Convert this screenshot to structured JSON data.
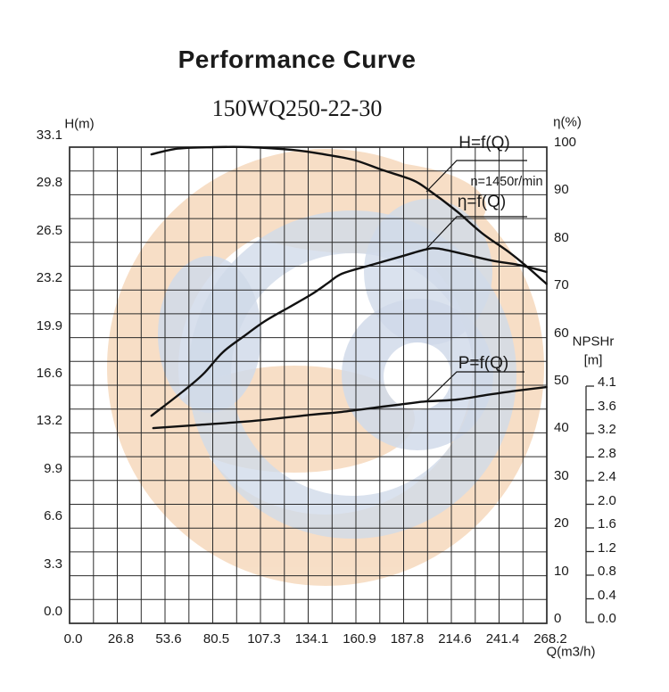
{
  "title": "Performance Curve",
  "subtitle": "150WQ250-22-30",
  "annotations": {
    "h_curve": "H=f(Q)",
    "eta_curve": "η=f(Q)",
    "p_curve": "P=f(Q)",
    "speed": "n=1450r/min"
  },
  "axes": {
    "left": {
      "label": "H(m)",
      "ticks": [
        "33.1",
        "29.8",
        "26.5",
        "23.2",
        "19.9",
        "16.6",
        "13.2",
        "9.9",
        "6.6",
        "3.3",
        "0.0"
      ]
    },
    "right": {
      "label": "η(%)",
      "ticks": [
        "100",
        "90",
        "80",
        "70",
        "60",
        "50",
        "40",
        "30",
        "20",
        "10",
        "0"
      ]
    },
    "bottom": {
      "label": "Q(m3/h)",
      "ticks": [
        "0.0",
        "26.8",
        "53.6",
        "80.5",
        "107.3",
        "134.1",
        "160.9",
        "187.8",
        "214.6",
        "241.4",
        "268.2"
      ]
    },
    "npshr": {
      "label_line1": "NPSHr",
      "label_line2": "[m]",
      "ticks": [
        "4.1",
        "3.6",
        "3.2",
        "2.8",
        "2.4",
        "2.0",
        "1.6",
        "1.2",
        "0.8",
        "0.4",
        "0.0"
      ]
    }
  },
  "chart_data": {
    "type": "line",
    "title": "Performance Curve",
    "subtitle": "150WQ250-22-30",
    "speed_annotation": "n=1450r/min",
    "grid": "on",
    "x_axis": {
      "label": "Q(m3/h)",
      "range": [
        0,
        268.2
      ],
      "ticks": [
        0.0,
        26.8,
        53.6,
        80.5,
        107.3,
        134.1,
        160.9,
        187.8,
        214.6,
        241.4,
        268.2
      ]
    },
    "y_axis_left": {
      "label": "H(m)",
      "range": [
        0,
        33.1
      ],
      "ticks": [
        33.1,
        29.8,
        26.5,
        23.2,
        19.9,
        16.6,
        13.2,
        9.9,
        6.6,
        3.3,
        0.0
      ]
    },
    "y_axis_right": {
      "label": "η(%)",
      "range": [
        0,
        100
      ],
      "ticks": [
        100,
        90,
        80,
        70,
        60,
        50,
        40,
        30,
        20,
        10,
        0
      ]
    },
    "y_axis_npshr": {
      "label": "NPSHr [m]",
      "range": [
        0,
        4.1
      ],
      "ticks": [
        4.1,
        3.6,
        3.2,
        2.8,
        2.4,
        2.0,
        1.6,
        1.2,
        0.8,
        0.4,
        0.0
      ],
      "note": "separate bracket scale, no NPSHr curve plotted"
    },
    "series": [
      {
        "name": "H=f(Q)",
        "scale": "H",
        "axis_label": "H(m)",
        "x": [
          46,
          61,
          81,
          101,
          126,
          143,
          160,
          176,
          193,
          202,
          218,
          232,
          247,
          257,
          268
        ],
        "y": [
          32.6,
          33.0,
          33.1,
          33.1,
          32.9,
          32.6,
          32.2,
          31.5,
          30.8,
          30.1,
          28.6,
          27.1,
          25.8,
          24.8,
          23.6
        ]
      },
      {
        "name": "η=f(Q)",
        "scale": "eta",
        "axis_label": "η(%)",
        "x": [
          46,
          63,
          75,
          86,
          98,
          110,
          123,
          136,
          145,
          153,
          170,
          186,
          200,
          207,
          222,
          237,
          252,
          262,
          268
        ],
        "y": [
          43.6,
          48.5,
          52.3,
          56.9,
          60.3,
          63.5,
          66.3,
          69.1,
          71.4,
          73.4,
          75.3,
          77.0,
          78.5,
          78.7,
          77.5,
          76.2,
          75.3,
          74.4,
          73.8
        ]
      },
      {
        "name": "P=f(Q)",
        "scale": "eta",
        "axis_label": "unlabeled (plotted against right-axis scale)",
        "x": [
          47,
          70,
          103,
          136,
          153,
          176,
          193,
          200,
          218,
          235,
          252,
          268
        ],
        "y": [
          41.0,
          41.6,
          42.5,
          43.8,
          44.4,
          45.5,
          46.3,
          46.6,
          47.0,
          48.0,
          48.9,
          49.6
        ]
      }
    ]
  },
  "colors": {
    "curve": "#111111",
    "grid": "#2b2b2b",
    "text": "#1a1a1a",
    "watermark_orange": "#f6d9bd",
    "watermark_blue": "#c9d4e6"
  }
}
